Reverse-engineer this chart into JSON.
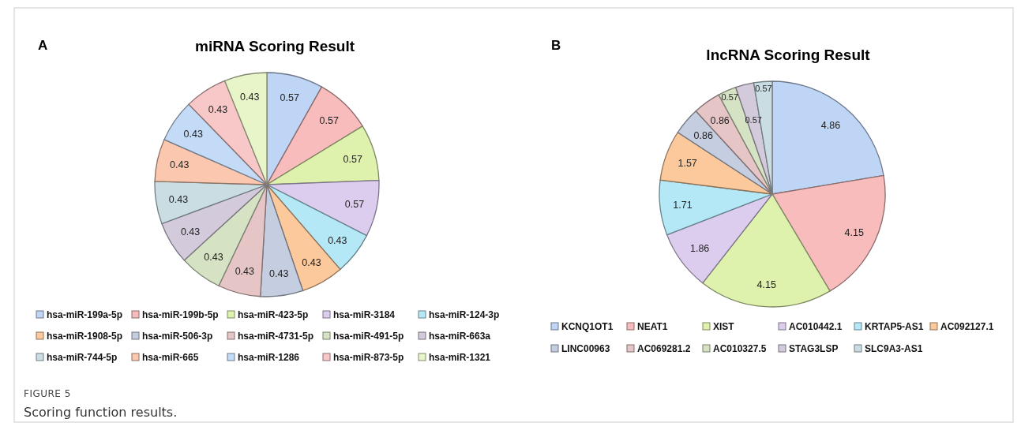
{
  "chart_data": [
    {
      "type": "pie",
      "title": "miRNA Scoring Result",
      "categories": [
        "hsa-miR-199a-5p",
        "hsa-miR-199b-5p",
        "hsa-miR-423-5p",
        "hsa-miR-3184",
        "hsa-miR-124-3p",
        "hsa-miR-1908-5p",
        "hsa-miR-506-3p",
        "hsa-miR-4731-5p",
        "hsa-miR-491-5p",
        "hsa-miR-663a",
        "hsa-miR-744-5p",
        "hsa-miR-665",
        "hsa-miR-1286",
        "hsa-miR-873-5p",
        "hsa-miR-1321"
      ],
      "values": [
        0.57,
        0.57,
        0.57,
        0.57,
        0.43,
        0.43,
        0.43,
        0.43,
        0.43,
        0.43,
        0.43,
        0.43,
        0.43,
        0.43,
        0.43
      ],
      "colors": [
        "#bfd5f5",
        "#f8bcbc",
        "#def2ad",
        "#dccdef",
        "#b4e8f7",
        "#fcc99c",
        "#c5cde0",
        "#e5c5c5",
        "#d6e2c4",
        "#d3cbdc",
        "#c9dde2",
        "#fbc8af",
        "#c4dbf7",
        "#f8c7c7",
        "#e8f5c8"
      ],
      "data_labels": true,
      "legend": "bottom",
      "annotations": [
        "A",
        "FIGURE 5",
        "Scoring function results."
      ]
    },
    {
      "type": "pie",
      "title": "lncRNA Scoring Result",
      "categories": [
        "KCNQ1OT1",
        "NEAT1",
        "XIST",
        "AC010442.1",
        "KRTAP5-AS1",
        "AC092127.1",
        "LINC00963",
        "AC069281.2",
        "AC010327.5",
        "STAG3LSP",
        "SLC9A3-AS1"
      ],
      "values": [
        4.86,
        4.15,
        4.15,
        1.86,
        1.71,
        1.57,
        0.86,
        0.86,
        0.57,
        0.57,
        0.57
      ],
      "colors": [
        "#bfd5f5",
        "#f8bcbc",
        "#def2ad",
        "#dccdef",
        "#b4e8f7",
        "#fcc99c",
        "#c5cde0",
        "#e5c5c5",
        "#d6e2c4",
        "#d3cbdc",
        "#c9dde2"
      ],
      "data_labels": true,
      "legend": "bottom",
      "annotations": [
        "B"
      ]
    }
  ]
}
